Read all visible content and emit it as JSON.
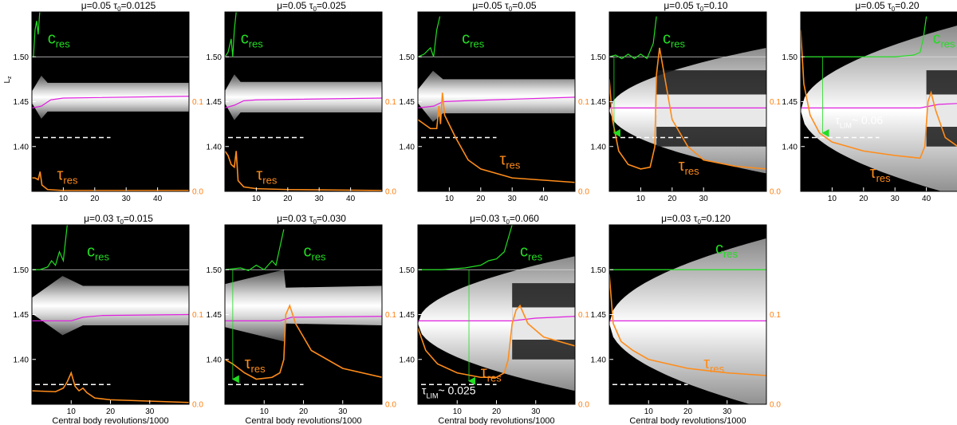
{
  "figure": {
    "ylabel": "L",
    "ylabel_sub": "z",
    "xlabel": "Central body revolutions/1000",
    "label_cres_main": "c",
    "label_cres_sub": "res",
    "label_tres_main": "τ",
    "label_tres_sub": "res",
    "left_ticks": [
      "1.40",
      "1.45",
      "1.50"
    ],
    "right_ticks": [
      "0.0",
      "0.1"
    ],
    "colors": {
      "background": "#000000",
      "cres": "#22dd22",
      "tres": "#ff8c1a",
      "pink": "#e020e0",
      "white_line": "#dddddd",
      "dashed": "#ffffff"
    }
  },
  "chart_data": [
    {
      "type": "line",
      "title_mu": "μ=0.05",
      "title_tau": "τ",
      "title_tau_sub": "0",
      "title_tau_val": "=0.0125",
      "xlim": [
        0,
        50
      ],
      "x_ticks": [
        "10",
        "20",
        "30",
        "40"
      ],
      "ylim": [
        1.35,
        1.55
      ],
      "right_ylim": [
        0,
        0.2
      ],
      "band": {
        "x_start": 0,
        "x_end": 50,
        "growth_end": 5,
        "center": 1.455,
        "half_width": 0.016,
        "shape": "blob",
        "dark_core": false
      },
      "pink": [
        [
          0,
          1.443
        ],
        [
          3,
          1.445
        ],
        [
          6,
          1.452
        ],
        [
          10,
          1.454
        ],
        [
          50,
          1.456
        ]
      ],
      "cres": [
        [
          0,
          1.5
        ],
        [
          0.5,
          1.5
        ],
        [
          1,
          1.53
        ],
        [
          1.5,
          1.54
        ],
        [
          2,
          1.525
        ],
        [
          2.5,
          1.55
        ]
      ],
      "tres": [
        [
          0,
          0.015
        ],
        [
          1,
          0.015
        ],
        [
          2,
          0.013
        ],
        [
          2.6,
          0.022
        ],
        [
          3.2,
          0.007
        ],
        [
          5,
          0.002
        ],
        [
          10,
          0.001
        ],
        [
          50,
          0.001
        ]
      ],
      "tlim_y": 1.41,
      "tlim_x": [
        0,
        25
      ],
      "arrow": null,
      "tlim_label": null,
      "cres_label_xy": [
        5,
        1.515
      ],
      "tres_label_xy": [
        8,
        1.363
      ]
    },
    {
      "type": "line",
      "title_mu": "μ=0.05",
      "title_tau": "τ",
      "title_tau_sub": "0",
      "title_tau_val": "=0.025",
      "xlim": [
        0,
        50
      ],
      "x_ticks": [
        "10",
        "20",
        "30",
        "40"
      ],
      "ylim": [
        1.35,
        1.55
      ],
      "right_ylim": [
        0,
        0.2
      ],
      "band": {
        "x_start": 0,
        "x_end": 50,
        "growth_end": 5,
        "center": 1.455,
        "half_width": 0.017,
        "shape": "blob",
        "dark_core": false
      },
      "pink": [
        [
          0,
          1.443
        ],
        [
          3,
          1.446
        ],
        [
          6,
          1.451
        ],
        [
          10,
          1.452
        ],
        [
          50,
          1.454
        ]
      ],
      "cres": [
        [
          0,
          1.5
        ],
        [
          1,
          1.505
        ],
        [
          2,
          1.52
        ],
        [
          2.5,
          1.5
        ],
        [
          3,
          1.53
        ],
        [
          3.6,
          1.55
        ]
      ],
      "tres": [
        [
          0,
          0.045
        ],
        [
          1,
          0.04
        ],
        [
          2,
          0.03
        ],
        [
          3,
          0.027
        ],
        [
          3.6,
          0.045
        ],
        [
          4.2,
          0.012
        ],
        [
          6,
          0.005
        ],
        [
          10,
          0.003
        ],
        [
          20,
          0.002
        ],
        [
          50,
          0.001
        ]
      ],
      "tlim_y": 1.41,
      "tlim_x": [
        0,
        25
      ],
      "arrow": null,
      "tlim_label": null,
      "cres_label_xy": [
        5,
        1.515
      ],
      "tres_label_xy": [
        10,
        1.363
      ]
    },
    {
      "type": "line",
      "title_mu": "μ=0.05",
      "title_tau": "τ",
      "title_tau_sub": "0",
      "title_tau_val": "=0.05",
      "xlim": [
        0,
        50
      ],
      "x_ticks": [
        "10",
        "20",
        "30",
        "40"
      ],
      "ylim": [
        1.35,
        1.55
      ],
      "right_ylim": [
        0,
        0.2
      ],
      "band": {
        "x_start": 0,
        "x_end": 50,
        "growth_end": 8,
        "center": 1.456,
        "half_width": 0.019,
        "shape": "blob",
        "dark_core": false
      },
      "pink": [
        [
          0,
          1.443
        ],
        [
          5,
          1.445
        ],
        [
          8,
          1.45
        ],
        [
          15,
          1.451
        ],
        [
          50,
          1.455
        ]
      ],
      "cres": [
        [
          0,
          1.5
        ],
        [
          2,
          1.503
        ],
        [
          4,
          1.51
        ],
        [
          5,
          1.5
        ],
        [
          6,
          1.53
        ],
        [
          7,
          1.545
        ]
      ],
      "tres": [
        [
          0,
          0.08
        ],
        [
          2,
          0.075
        ],
        [
          4,
          0.07
        ],
        [
          6,
          0.07
        ],
        [
          6.7,
          0.095
        ],
        [
          7.2,
          0.075
        ],
        [
          7.8,
          0.11
        ],
        [
          8.5,
          0.085
        ],
        [
          12,
          0.06
        ],
        [
          16,
          0.035
        ],
        [
          20,
          0.025
        ],
        [
          30,
          0.015
        ],
        [
          50,
          0.01
        ]
      ],
      "tlim_y": 1.41,
      "tlim_x": [
        0,
        25
      ],
      "arrow": null,
      "tlim_label": null,
      "cres_label_xy": [
        14,
        1.515
      ],
      "tres_label_xy": [
        26,
        1.38
      ]
    },
    {
      "type": "line",
      "title_mu": "μ=0.05",
      "title_tau": "τ",
      "title_tau_sub": "0",
      "title_tau_val": "=0.10",
      "xlim": [
        0,
        50
      ],
      "x_ticks": [
        "10",
        "20",
        "30"
      ],
      "ylim": [
        1.35,
        1.55
      ],
      "right_ylim": [
        0,
        0.2
      ],
      "band": {
        "x_start": 0,
        "x_end": 50,
        "growth_end": 50,
        "center": 1.44,
        "half_width": 0.07,
        "shape": "parabola",
        "dark_core": true,
        "core_end": 15
      },
      "pink": [
        [
          0,
          1.443
        ],
        [
          50,
          1.443
        ]
      ],
      "cres": [
        [
          0,
          1.5
        ],
        [
          2,
          1.502
        ],
        [
          4,
          1.498
        ],
        [
          6,
          1.503
        ],
        [
          8,
          1.498
        ],
        [
          10,
          1.503
        ],
        [
          12,
          1.498
        ],
        [
          14,
          1.515
        ],
        [
          15,
          1.545
        ]
      ],
      "tres": [
        [
          0,
          0.125
        ],
        [
          1,
          0.08
        ],
        [
          3,
          0.045
        ],
        [
          6,
          0.03
        ],
        [
          10,
          0.025
        ],
        [
          13,
          0.027
        ],
        [
          14.5,
          0.05
        ],
        [
          15,
          0.13
        ],
        [
          16,
          0.16
        ],
        [
          17,
          0.14
        ],
        [
          20,
          0.08
        ],
        [
          25,
          0.05
        ],
        [
          30,
          0.035
        ],
        [
          40,
          0.028
        ],
        [
          50,
          0.025
        ]
      ],
      "tlim_y": 1.41,
      "tlim_x": [
        0,
        25
      ],
      "arrow": {
        "x": 1.5,
        "y_from": 1.5,
        "y_to": 1.415
      },
      "tlim_label": null,
      "cres_label_xy": [
        17,
        1.515
      ],
      "tres_label_xy": [
        22,
        1.373
      ]
    },
    {
      "type": "line",
      "title_mu": "μ=0.05",
      "title_tau": "τ",
      "title_tau_sub": "0",
      "title_tau_val": "=0.20",
      "xlim": [
        0,
        50
      ],
      "x_ticks": [
        "10",
        "20",
        "30",
        "40"
      ],
      "ylim": [
        1.35,
        1.55
      ],
      "right_ylim": [
        0,
        0.2
      ],
      "band": {
        "x_start": 0,
        "x_end": 50,
        "growth_end": 50,
        "center": 1.44,
        "half_width": 0.095,
        "shape": "parabola",
        "dark_core": true,
        "core_end": 40
      },
      "pink": [
        [
          0,
          1.443
        ],
        [
          38,
          1.443
        ],
        [
          44,
          1.447
        ],
        [
          50,
          1.448
        ]
      ],
      "cres": [
        [
          0,
          1.5
        ],
        [
          10,
          1.5
        ],
        [
          20,
          1.5
        ],
        [
          30,
          1.5
        ],
        [
          36,
          1.502
        ],
        [
          38,
          1.505
        ],
        [
          39,
          1.52
        ],
        [
          40,
          1.545
        ]
      ],
      "tres": [
        [
          0,
          0.18
        ],
        [
          1,
          0.12
        ],
        [
          3,
          0.085
        ],
        [
          6,
          0.065
        ],
        [
          10,
          0.055
        ],
        [
          20,
          0.045
        ],
        [
          30,
          0.04
        ],
        [
          38,
          0.037
        ],
        [
          39.5,
          0.05
        ],
        [
          40.5,
          0.1
        ],
        [
          41.5,
          0.11
        ],
        [
          43,
          0.09
        ],
        [
          46,
          0.06
        ],
        [
          50,
          0.05
        ]
      ],
      "tlim_y": 1.41,
      "tlim_x": [
        0,
        25
      ],
      "arrow": {
        "x": 7,
        "y_from": 1.5,
        "y_to": 1.415
      },
      "tlim_label": {
        "main": "τ",
        "sub": "LIM",
        "text": "~ 0.06",
        "xy": [
          11,
          1.425
        ]
      },
      "cres_label_xy": [
        42,
        1.515
      ],
      "tres_label_xy": [
        22,
        1.365
      ]
    },
    {
      "type": "line",
      "title_mu": "μ=0.03",
      "title_tau": "τ",
      "title_tau_sub": "0",
      "title_tau_val": "=0.015",
      "xlim": [
        0,
        40
      ],
      "x_ticks": [
        "10",
        "20",
        "30"
      ],
      "ylim": [
        1.35,
        1.55
      ],
      "right_ylim": [
        0,
        0.2
      ],
      "band": {
        "x_start": 0,
        "x_end": 40,
        "growth_end": 13,
        "center": 1.46,
        "half_width": 0.022,
        "shape": "blob",
        "dark_core": false
      },
      "pink": [
        [
          0,
          1.443
        ],
        [
          10,
          1.443
        ],
        [
          13,
          1.447
        ],
        [
          18,
          1.449
        ],
        [
          40,
          1.45
        ]
      ],
      "cres": [
        [
          0,
          1.5
        ],
        [
          2,
          1.5
        ],
        [
          4,
          1.503
        ],
        [
          5,
          1.51
        ],
        [
          6,
          1.505
        ],
        [
          7,
          1.52
        ],
        [
          8,
          1.51
        ],
        [
          9,
          1.55
        ]
      ],
      "tres": [
        [
          0,
          0.015
        ],
        [
          6,
          0.014
        ],
        [
          8,
          0.018
        ],
        [
          9,
          0.025
        ],
        [
          10,
          0.035
        ],
        [
          11,
          0.02
        ],
        [
          12,
          0.015
        ],
        [
          13,
          0.018
        ],
        [
          14,
          0.013
        ],
        [
          16,
          0.007
        ],
        [
          20,
          0.005
        ],
        [
          40,
          0.002
        ]
      ],
      "tlim_y": 1.372,
      "tlim_x": [
        0,
        20
      ],
      "arrow": null,
      "tlim_label": null,
      "cres_label_xy": [
        14,
        1.515
      ],
      "tres_label_xy": null
    },
    {
      "type": "line",
      "title_mu": "μ=0.03",
      "title_tau": "τ",
      "title_tau_sub": "0",
      "title_tau_val": "=0.030",
      "xlim": [
        0,
        40
      ],
      "x_ticks": [
        "10",
        "20",
        "30"
      ],
      "ylim": [
        1.35,
        1.55
      ],
      "right_ylim": [
        0,
        0.2
      ],
      "band": {
        "x_start": 0,
        "x_end": 40,
        "growth_end": 15,
        "center": 1.46,
        "half_width": 0.04,
        "shape": "wedge",
        "dark_core": false
      },
      "pink": [
        [
          0,
          1.443
        ],
        [
          14,
          1.443
        ],
        [
          17,
          1.447
        ],
        [
          40,
          1.448
        ]
      ],
      "cres": [
        [
          0,
          1.5
        ],
        [
          4,
          1.502
        ],
        [
          6,
          1.499
        ],
        [
          8,
          1.505
        ],
        [
          10,
          1.5
        ],
        [
          12,
          1.51
        ],
        [
          13,
          1.505
        ],
        [
          14,
          1.525
        ],
        [
          15,
          1.545
        ]
      ],
      "tres": [
        [
          0,
          0.05
        ],
        [
          2,
          0.045
        ],
        [
          5,
          0.035
        ],
        [
          8,
          0.028
        ],
        [
          12,
          0.03
        ],
        [
          14,
          0.035
        ],
        [
          15,
          0.05
        ],
        [
          15.5,
          0.1
        ],
        [
          16.5,
          0.11
        ],
        [
          18,
          0.09
        ],
        [
          22,
          0.06
        ],
        [
          30,
          0.04
        ],
        [
          40,
          0.03
        ]
      ],
      "tlim_y": 1.372,
      "tlim_x": [
        0,
        20
      ],
      "arrow": {
        "x": 2,
        "y_from": 1.5,
        "y_to": 1.378
      },
      "tlim_label": null,
      "cres_label_xy": [
        20,
        1.515
      ],
      "tres_label_xy": [
        5,
        1.39
      ]
    },
    {
      "type": "line",
      "title_mu": "μ=0.03",
      "title_tau": "τ",
      "title_tau_sub": "0",
      "title_tau_val": "=0.060",
      "xlim": [
        0,
        40
      ],
      "x_ticks": [
        "10",
        "20",
        "30"
      ],
      "ylim": [
        1.35,
        1.55
      ],
      "right_ylim": [
        0,
        0.2
      ],
      "band": {
        "x_start": 0,
        "x_end": 40,
        "growth_end": 40,
        "center": 1.44,
        "half_width": 0.075,
        "shape": "parabola",
        "dark_core": true,
        "core_end": 24
      },
      "pink": [
        [
          0,
          1.443
        ],
        [
          24,
          1.443
        ],
        [
          30,
          1.446
        ],
        [
          40,
          1.448
        ]
      ],
      "cres": [
        [
          0,
          1.5
        ],
        [
          6,
          1.5
        ],
        [
          12,
          1.502
        ],
        [
          16,
          1.505
        ],
        [
          18,
          1.51
        ],
        [
          20,
          1.512
        ],
        [
          22,
          1.52
        ],
        [
          23,
          1.535
        ],
        [
          24,
          1.55
        ]
      ],
      "tres": [
        [
          0,
          0.085
        ],
        [
          2,
          0.06
        ],
        [
          5,
          0.045
        ],
        [
          10,
          0.035
        ],
        [
          16,
          0.03
        ],
        [
          20,
          0.03
        ],
        [
          22,
          0.035
        ],
        [
          23,
          0.05
        ],
        [
          24,
          0.09
        ],
        [
          25,
          0.105
        ],
        [
          26,
          0.11
        ],
        [
          28,
          0.09
        ],
        [
          32,
          0.075
        ],
        [
          40,
          0.065
        ]
      ],
      "tlim_y": 1.372,
      "tlim_x": [
        0,
        20
      ],
      "arrow": {
        "x": 13,
        "y_from": 1.5,
        "y_to": 1.376
      },
      "tlim_label": {
        "main": "τ",
        "sub": "LIM",
        "text": "~ 0.025",
        "xy": [
          1,
          1.361
        ]
      },
      "cres_label_xy": [
        26,
        1.515
      ],
      "tres_label_xy": [
        16,
        1.38
      ]
    },
    {
      "type": "line",
      "title_mu": "μ=0.03",
      "title_tau": "τ",
      "title_tau_sub": "0",
      "title_tau_val": "=0.120",
      "xlim": [
        0,
        40
      ],
      "x_ticks": [
        "10",
        "20",
        "30"
      ],
      "ylim": [
        1.35,
        1.55
      ],
      "right_ylim": [
        0,
        0.2
      ],
      "band": {
        "x_start": 0,
        "x_end": 40,
        "growth_end": 40,
        "center": 1.44,
        "half_width": 0.095,
        "shape": "parabola",
        "dark_core": false
      },
      "pink": [
        [
          0,
          1.443
        ],
        [
          40,
          1.443
        ]
      ],
      "cres": [
        [
          0,
          1.5
        ],
        [
          10,
          1.5
        ],
        [
          20,
          1.5
        ],
        [
          30,
          1.5
        ],
        [
          40,
          1.5
        ]
      ],
      "tres": [
        [
          0,
          0.145
        ],
        [
          1,
          0.09
        ],
        [
          3,
          0.07
        ],
        [
          6,
          0.06
        ],
        [
          10,
          0.05
        ],
        [
          20,
          0.04
        ],
        [
          30,
          0.035
        ],
        [
          40,
          0.032
        ]
      ],
      "tlim_y": 1.372,
      "tlim_x": [
        0,
        20
      ],
      "arrow": null,
      "tlim_label": null,
      "cres_label_xy": [
        27,
        1.518
      ],
      "tres_label_xy": [
        24,
        1.39
      ]
    }
  ]
}
